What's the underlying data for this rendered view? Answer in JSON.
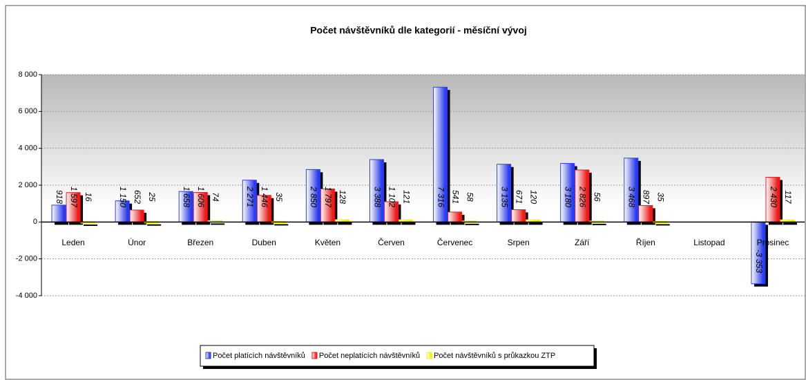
{
  "chart_data": {
    "type": "bar",
    "title": "Počet návštěvníků dle kategorií - měsíční vývoj",
    "categories": [
      "Leden",
      "Únor",
      "Březen",
      "Duben",
      "Květen",
      "Červen",
      "Červenec",
      "Srpen",
      "Září",
      "Říjen",
      "Listopad",
      "Prosinec"
    ],
    "series": [
      {
        "name": "Počet platících  návštěvníků",
        "color": "#2a3cf0",
        "values": [
          918,
          1150,
          1658,
          2271,
          2850,
          3388,
          7316,
          3135,
          3180,
          3468,
          null,
          -3353
        ],
        "value_labels": [
          "918",
          "1 150",
          "1 658",
          "2 271",
          "2 850",
          "3 388",
          "7 316",
          "3 135",
          "3 180",
          "3 468",
          null,
          "-3 353"
        ]
      },
      {
        "name": "Počet neplatících  návštěvníků",
        "color": "#f01a1a",
        "values": [
          1597,
          652,
          1606,
          1446,
          1797,
          1102,
          541,
          671,
          2826,
          897,
          null,
          2430
        ],
        "value_labels": [
          "1 597",
          "652",
          "1 606",
          "1 446",
          "1 797",
          "1 102",
          "541",
          "671",
          "2 826",
          "897",
          null,
          "2 430"
        ]
      },
      {
        "name": "Počet návštěvníků  s průkazkou ZTP",
        "color": "#f5f000",
        "values": [
          16,
          25,
          74,
          35,
          128,
          121,
          58,
          120,
          56,
          35,
          null,
          117
        ],
        "value_labels": [
          "16",
          "25",
          "74",
          "35",
          "128",
          "121",
          "58",
          "120",
          "56",
          "35",
          null,
          "117"
        ]
      }
    ],
    "ylim": [
      -4000,
      8000
    ],
    "yticks": [
      {
        "value": -4000,
        "label": "-4 000"
      },
      {
        "value": -2000,
        "label": "-2 000"
      },
      0,
      {
        "value": 2000,
        "label": "2 000"
      },
      {
        "value": 4000,
        "label": "4 000"
      },
      {
        "value": 6000,
        "label": "6 000"
      },
      {
        "value": 8000,
        "label": "8 000"
      }
    ],
    "grid": true
  }
}
